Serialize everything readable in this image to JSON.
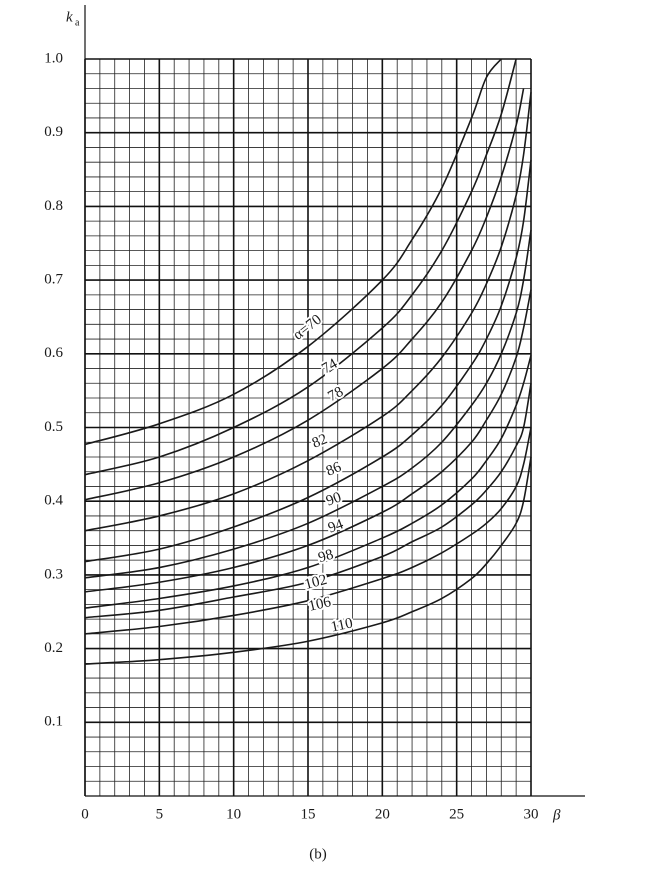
{
  "chart_data": {
    "type": "line",
    "y_label_symbol": "k",
    "y_label_subscript": "a",
    "x_label": "β",
    "caption": "(b)",
    "xlim": [
      0,
      30
    ],
    "ylim": [
      0,
      1
    ],
    "xticks": [
      0,
      5,
      10,
      15,
      20,
      25,
      30
    ],
    "yticks": [
      0.1,
      0.2,
      0.3,
      0.4,
      0.5,
      0.6,
      0.7,
      0.8,
      0.9,
      {
        "value": 1,
        "label": "1.0"
      }
    ],
    "grid": true,
    "minor_grid": true,
    "x": [
      0,
      5,
      10,
      15,
      20,
      22,
      24,
      26,
      27,
      28,
      29,
      29.5,
      30
    ],
    "series": [
      {
        "name": "α=70",
        "color": "#1a1a1a",
        "values": [
          0.477,
          0.505,
          0.545,
          0.61,
          0.7,
          0.755,
          0.825,
          0.92,
          0.975,
          1.0,
          null,
          null,
          null
        ]
      },
      {
        "name": "74",
        "color": "#1a1a1a",
        "values": [
          0.436,
          0.46,
          0.5,
          0.555,
          0.635,
          0.68,
          0.74,
          0.82,
          0.87,
          0.925,
          1.0,
          null,
          null
        ]
      },
      {
        "name": "78",
        "color": "#1a1a1a",
        "values": [
          0.402,
          0.425,
          0.46,
          0.51,
          0.58,
          0.62,
          0.67,
          0.74,
          0.785,
          0.84,
          0.91,
          0.96,
          null
        ]
      },
      {
        "name": "82",
        "color": "#1a1a1a",
        "values": [
          0.36,
          0.38,
          0.41,
          0.455,
          0.515,
          0.55,
          0.595,
          0.655,
          0.695,
          0.745,
          0.815,
          0.87,
          0.955
        ]
      },
      {
        "name": "86",
        "color": "#1a1a1a",
        "values": [
          0.318,
          0.335,
          0.365,
          0.405,
          0.46,
          0.49,
          0.53,
          0.585,
          0.62,
          0.665,
          0.73,
          0.78,
          0.863
        ]
      },
      {
        "name": "90",
        "color": "#1a1a1a",
        "values": [
          0.296,
          0.31,
          0.335,
          0.37,
          0.42,
          0.445,
          0.48,
          0.53,
          0.56,
          0.6,
          0.655,
          0.7,
          0.768
        ]
      },
      {
        "name": "94",
        "color": "#1a1a1a",
        "values": [
          0.277,
          0.29,
          0.31,
          0.34,
          0.385,
          0.41,
          0.44,
          0.48,
          0.51,
          0.545,
          0.595,
          0.635,
          0.687
        ]
      },
      {
        "name": "98",
        "color": "#1a1a1a",
        "values": [
          0.255,
          0.268,
          0.285,
          0.31,
          0.35,
          0.37,
          0.395,
          0.43,
          0.455,
          0.485,
          0.53,
          0.56,
          0.598
        ]
      },
      {
        "name": "102",
        "color": "#1a1a1a",
        "values": [
          0.242,
          0.252,
          0.27,
          0.29,
          0.325,
          0.345,
          0.365,
          0.395,
          0.415,
          0.44,
          0.475,
          0.5,
          0.56
        ]
      },
      {
        "name": "106",
        "color": "#1a1a1a",
        "values": [
          0.22,
          0.23,
          0.245,
          0.265,
          0.295,
          0.31,
          0.33,
          0.355,
          0.37,
          0.39,
          0.42,
          0.45,
          0.5
        ]
      },
      {
        "name": "110",
        "color": "#1a1a1a",
        "values": [
          0.179,
          0.185,
          0.195,
          0.21,
          0.235,
          0.25,
          0.268,
          0.295,
          0.315,
          0.34,
          0.37,
          0.4,
          0.46
        ]
      }
    ]
  }
}
